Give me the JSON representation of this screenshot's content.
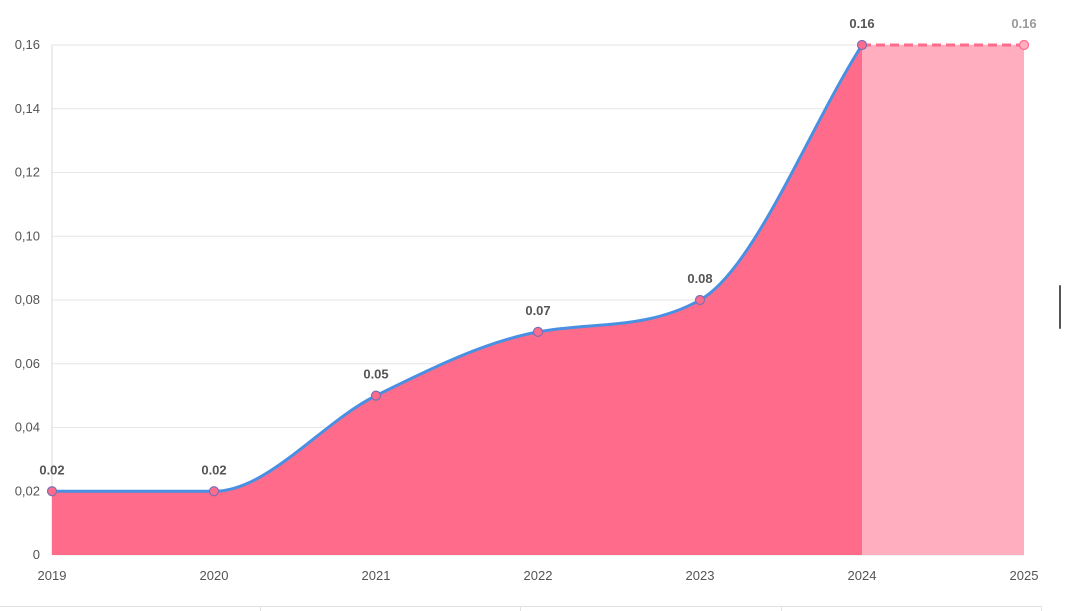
{
  "chart_data": {
    "type": "area",
    "x": [
      "2019",
      "2020",
      "2021",
      "2022",
      "2023",
      "2024",
      "2025"
    ],
    "values": [
      0.02,
      0.02,
      0.05,
      0.07,
      0.08,
      0.16,
      0.16
    ],
    "value_labels": [
      "0.02",
      "0.02",
      "0.05",
      "0.07",
      "0.08",
      "0.16",
      "0.16"
    ],
    "forecast_from_index": 5,
    "yticks": [
      0,
      0.02,
      0.04,
      0.06,
      0.08,
      0.1,
      0.12,
      0.14,
      0.16
    ],
    "ytick_labels": [
      "0",
      "0,02",
      "0,04",
      "0,06",
      "0,08",
      "0,10",
      "0,12",
      "0,14",
      "0,16"
    ],
    "ylim": [
      0,
      0.16
    ],
    "grid": true,
    "colors": {
      "area": "#ff6b8b",
      "forecast_area": "#ffaec0",
      "line": "#4a90e2",
      "forecast_line": "#ff6b8b",
      "point": "#ff6b8b"
    }
  }
}
